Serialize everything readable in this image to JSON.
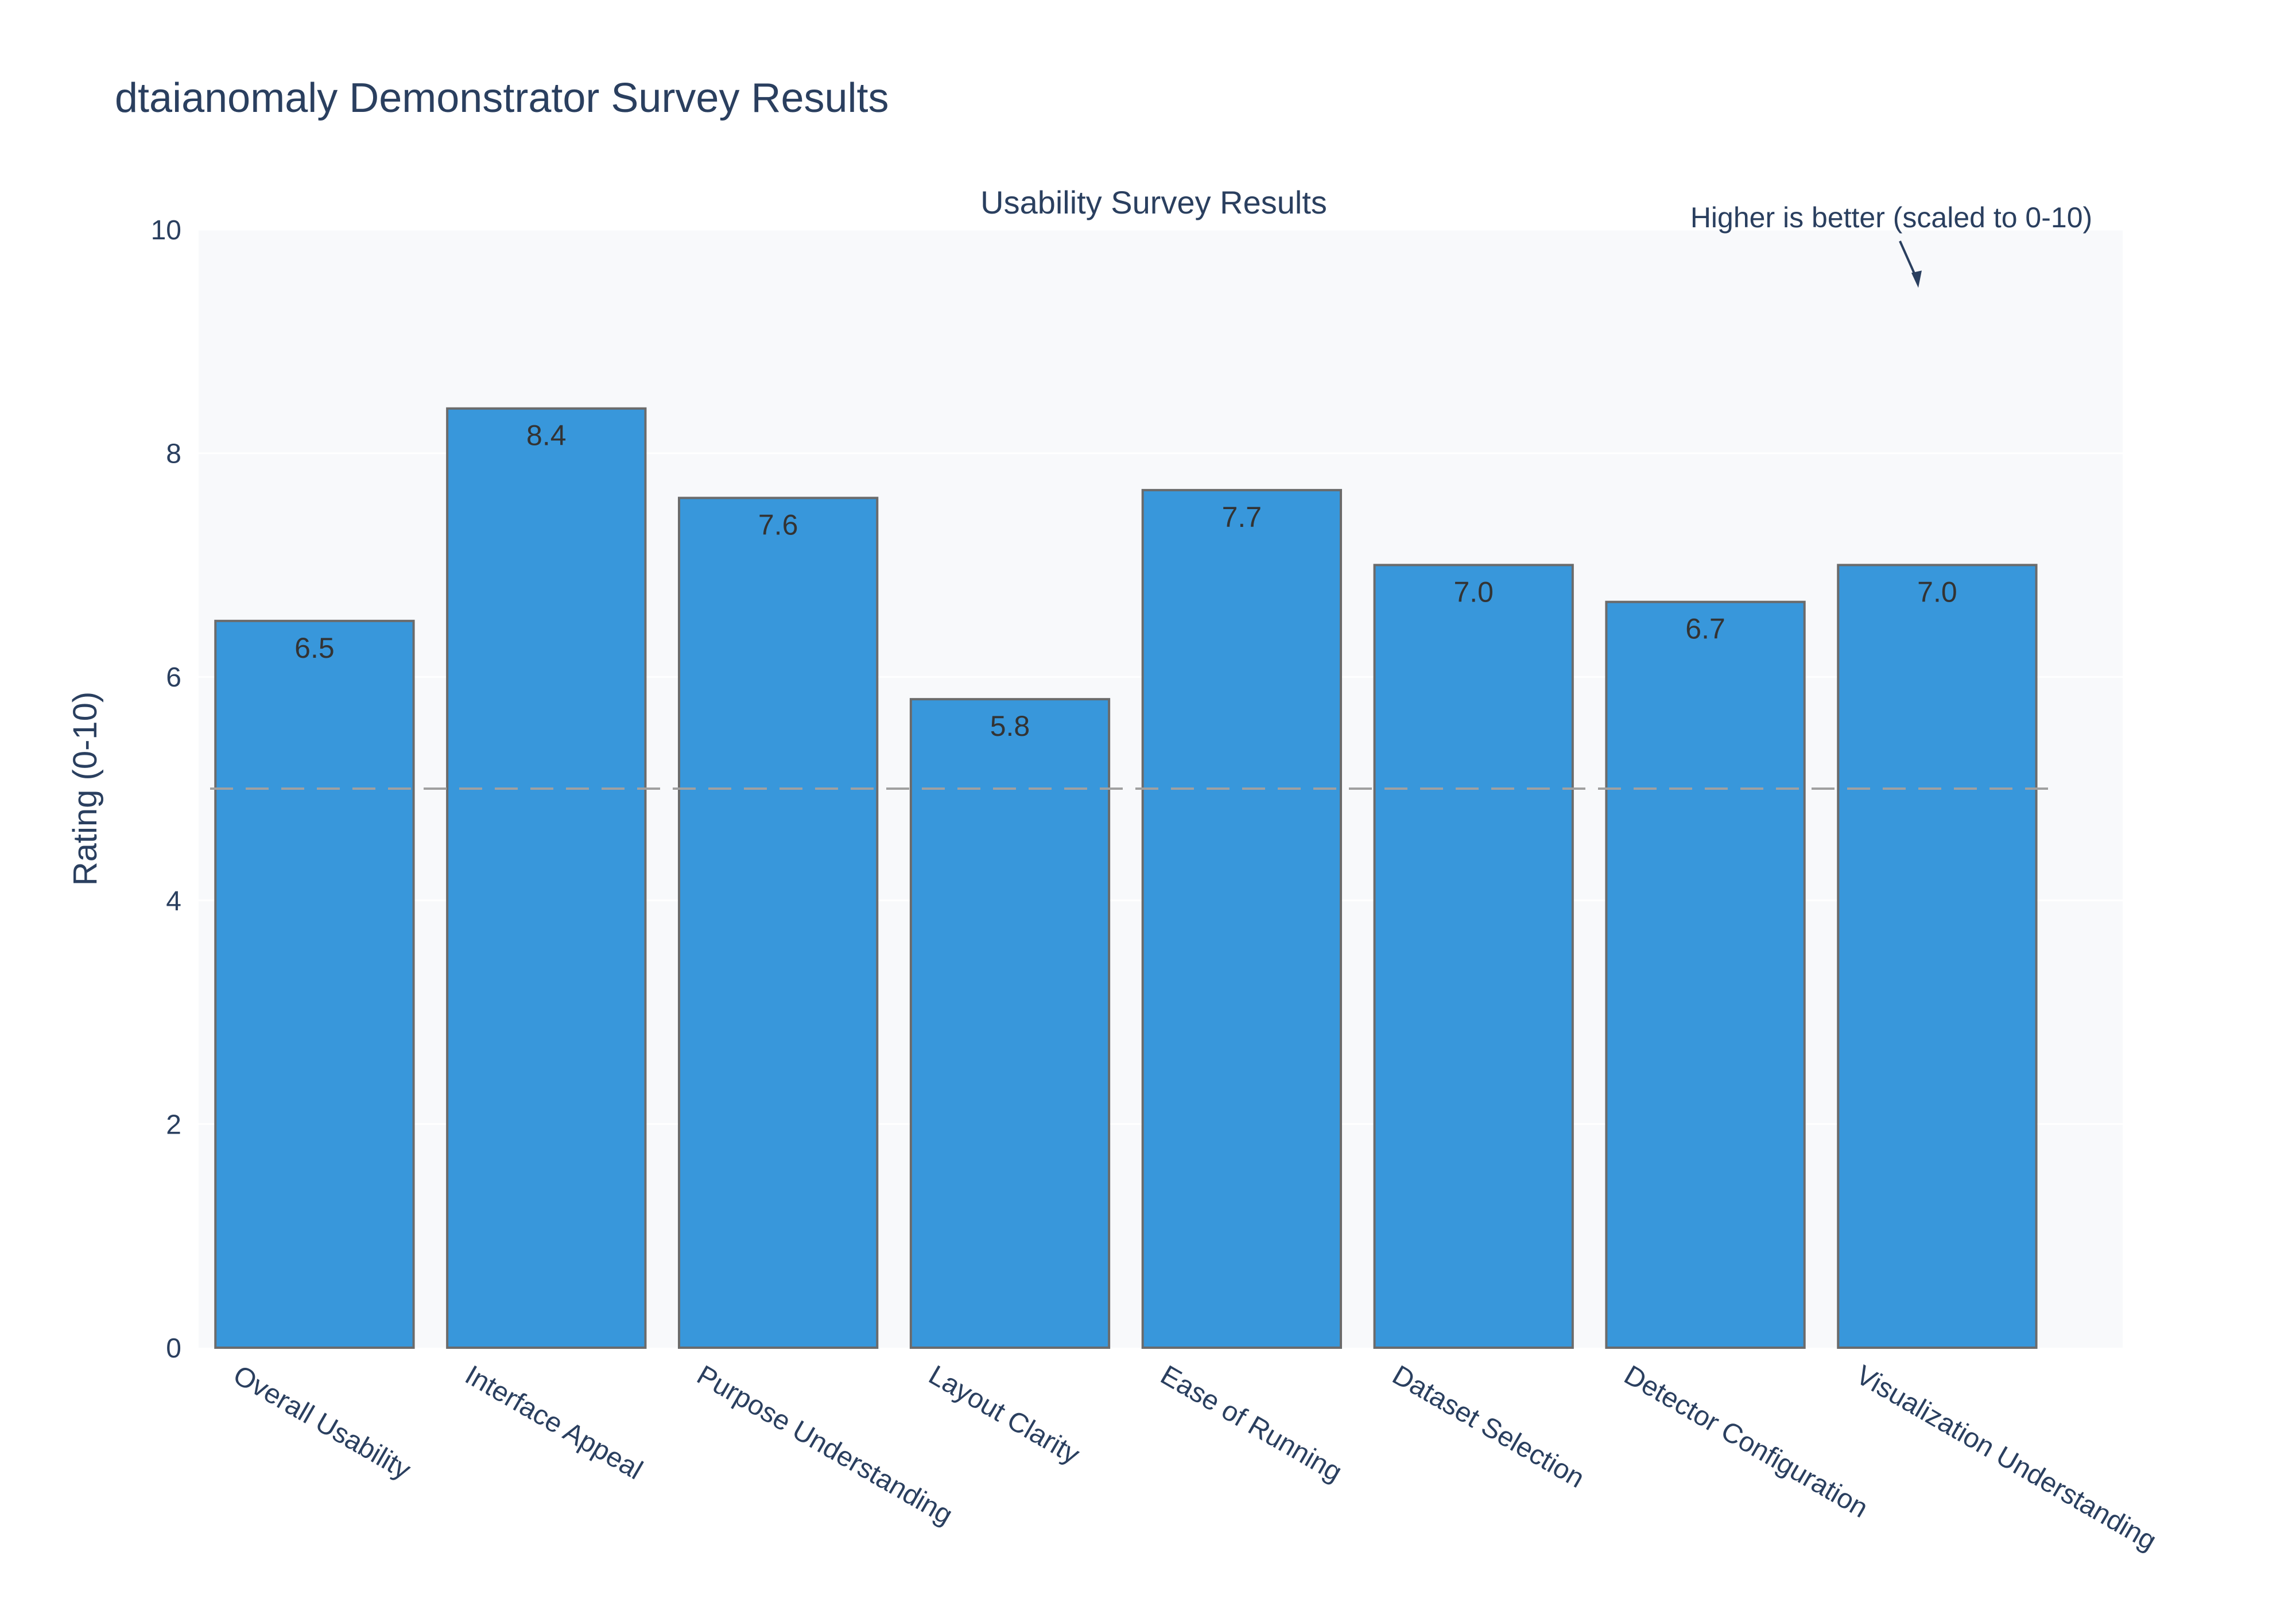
{
  "chart_data": {
    "type": "bar",
    "title": "dtaianomaly Demonstrator Survey Results",
    "subtitle": "Usability Survey Results",
    "ylabel": "Rating (0-10)",
    "xlabel": "",
    "ylim": [
      0,
      10
    ],
    "yticks": [
      0,
      2,
      4,
      6,
      8,
      10
    ],
    "categories": [
      "Overall Usability",
      "Interface Appeal",
      "Purpose Understanding",
      "Layout Clarity",
      "Ease of Running",
      "Dataset Selection",
      "Detector Configuration",
      "Visualization Understanding"
    ],
    "values": [
      6.5,
      8.4,
      7.6,
      5.8,
      7.67,
      7.0,
      6.67,
      7.0
    ],
    "data_labels": [
      "6.5",
      "8.4",
      "7.6",
      "5.8",
      "7.7",
      "7.0",
      "6.7",
      "7.0"
    ],
    "reference_line": {
      "y": 5,
      "style": "dashed"
    },
    "annotation": {
      "text": "Higher is better (scaled to 0-10)",
      "points_to_y": 9.5
    },
    "grid": true,
    "legend": "none",
    "colors": {
      "bar": "#3897db",
      "bar_outline": "#6b6b6b",
      "plot_bg": "#f8f9fb",
      "grid": "#ffffff",
      "text": "#2a3f5f",
      "reference_line": "#a0a0a0"
    }
  }
}
